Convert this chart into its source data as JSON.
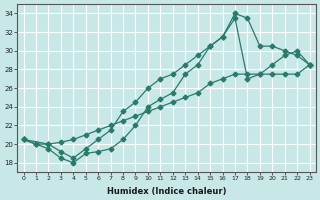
{
  "xlabel": "Humidex (Indice chaleur)",
  "bg_color": "#c8e8e8",
  "line_color": "#2a7a6a",
  "grid_color": "#ffffff",
  "xlim": [
    -0.5,
    23.5
  ],
  "ylim": [
    17,
    35
  ],
  "yticks": [
    18,
    20,
    22,
    24,
    26,
    28,
    30,
    32,
    34
  ],
  "xticks": [
    0,
    1,
    2,
    3,
    4,
    5,
    6,
    7,
    8,
    9,
    10,
    11,
    12,
    13,
    14,
    15,
    16,
    17,
    18,
    19,
    20,
    21,
    22,
    23
  ],
  "line1_x": [
    0,
    1,
    2,
    3,
    4,
    5,
    6,
    7,
    8,
    9,
    10,
    11,
    12,
    13,
    14,
    15,
    16,
    17,
    18,
    19,
    20,
    21,
    22,
    23
  ],
  "line1_y": [
    20.5,
    20.0,
    19.5,
    18.5,
    18.0,
    19.0,
    19.2,
    19.5,
    20.5,
    22.0,
    24.0,
    24.8,
    25.5,
    27.5,
    28.5,
    30.5,
    31.5,
    34.0,
    33.5,
    30.5,
    30.5,
    30.0,
    29.5,
    28.5
  ],
  "line2_x": [
    0,
    2,
    3,
    4,
    5,
    6,
    7,
    8,
    9,
    10,
    11,
    12,
    13,
    14,
    15,
    16,
    17,
    18,
    19,
    20,
    21,
    22,
    23
  ],
  "line2_y": [
    20.5,
    20.0,
    19.2,
    18.5,
    19.5,
    20.5,
    21.5,
    23.5,
    24.5,
    26.0,
    27.0,
    27.5,
    28.5,
    29.5,
    30.5,
    31.5,
    33.5,
    27.0,
    27.5,
    28.5,
    29.5,
    30.0,
    28.5
  ],
  "line3_x": [
    0,
    1,
    2,
    3,
    4,
    5,
    6,
    7,
    8,
    9,
    10,
    11,
    12,
    13,
    14,
    15,
    16,
    17,
    18,
    19,
    20,
    21,
    22,
    23
  ],
  "line3_y": [
    20.5,
    20.0,
    20.0,
    20.2,
    20.5,
    21.0,
    21.5,
    22.0,
    22.5,
    23.0,
    23.5,
    24.0,
    24.5,
    25.0,
    25.5,
    26.5,
    27.0,
    27.5,
    27.5,
    27.5,
    27.5,
    27.5,
    27.5,
    28.5
  ]
}
